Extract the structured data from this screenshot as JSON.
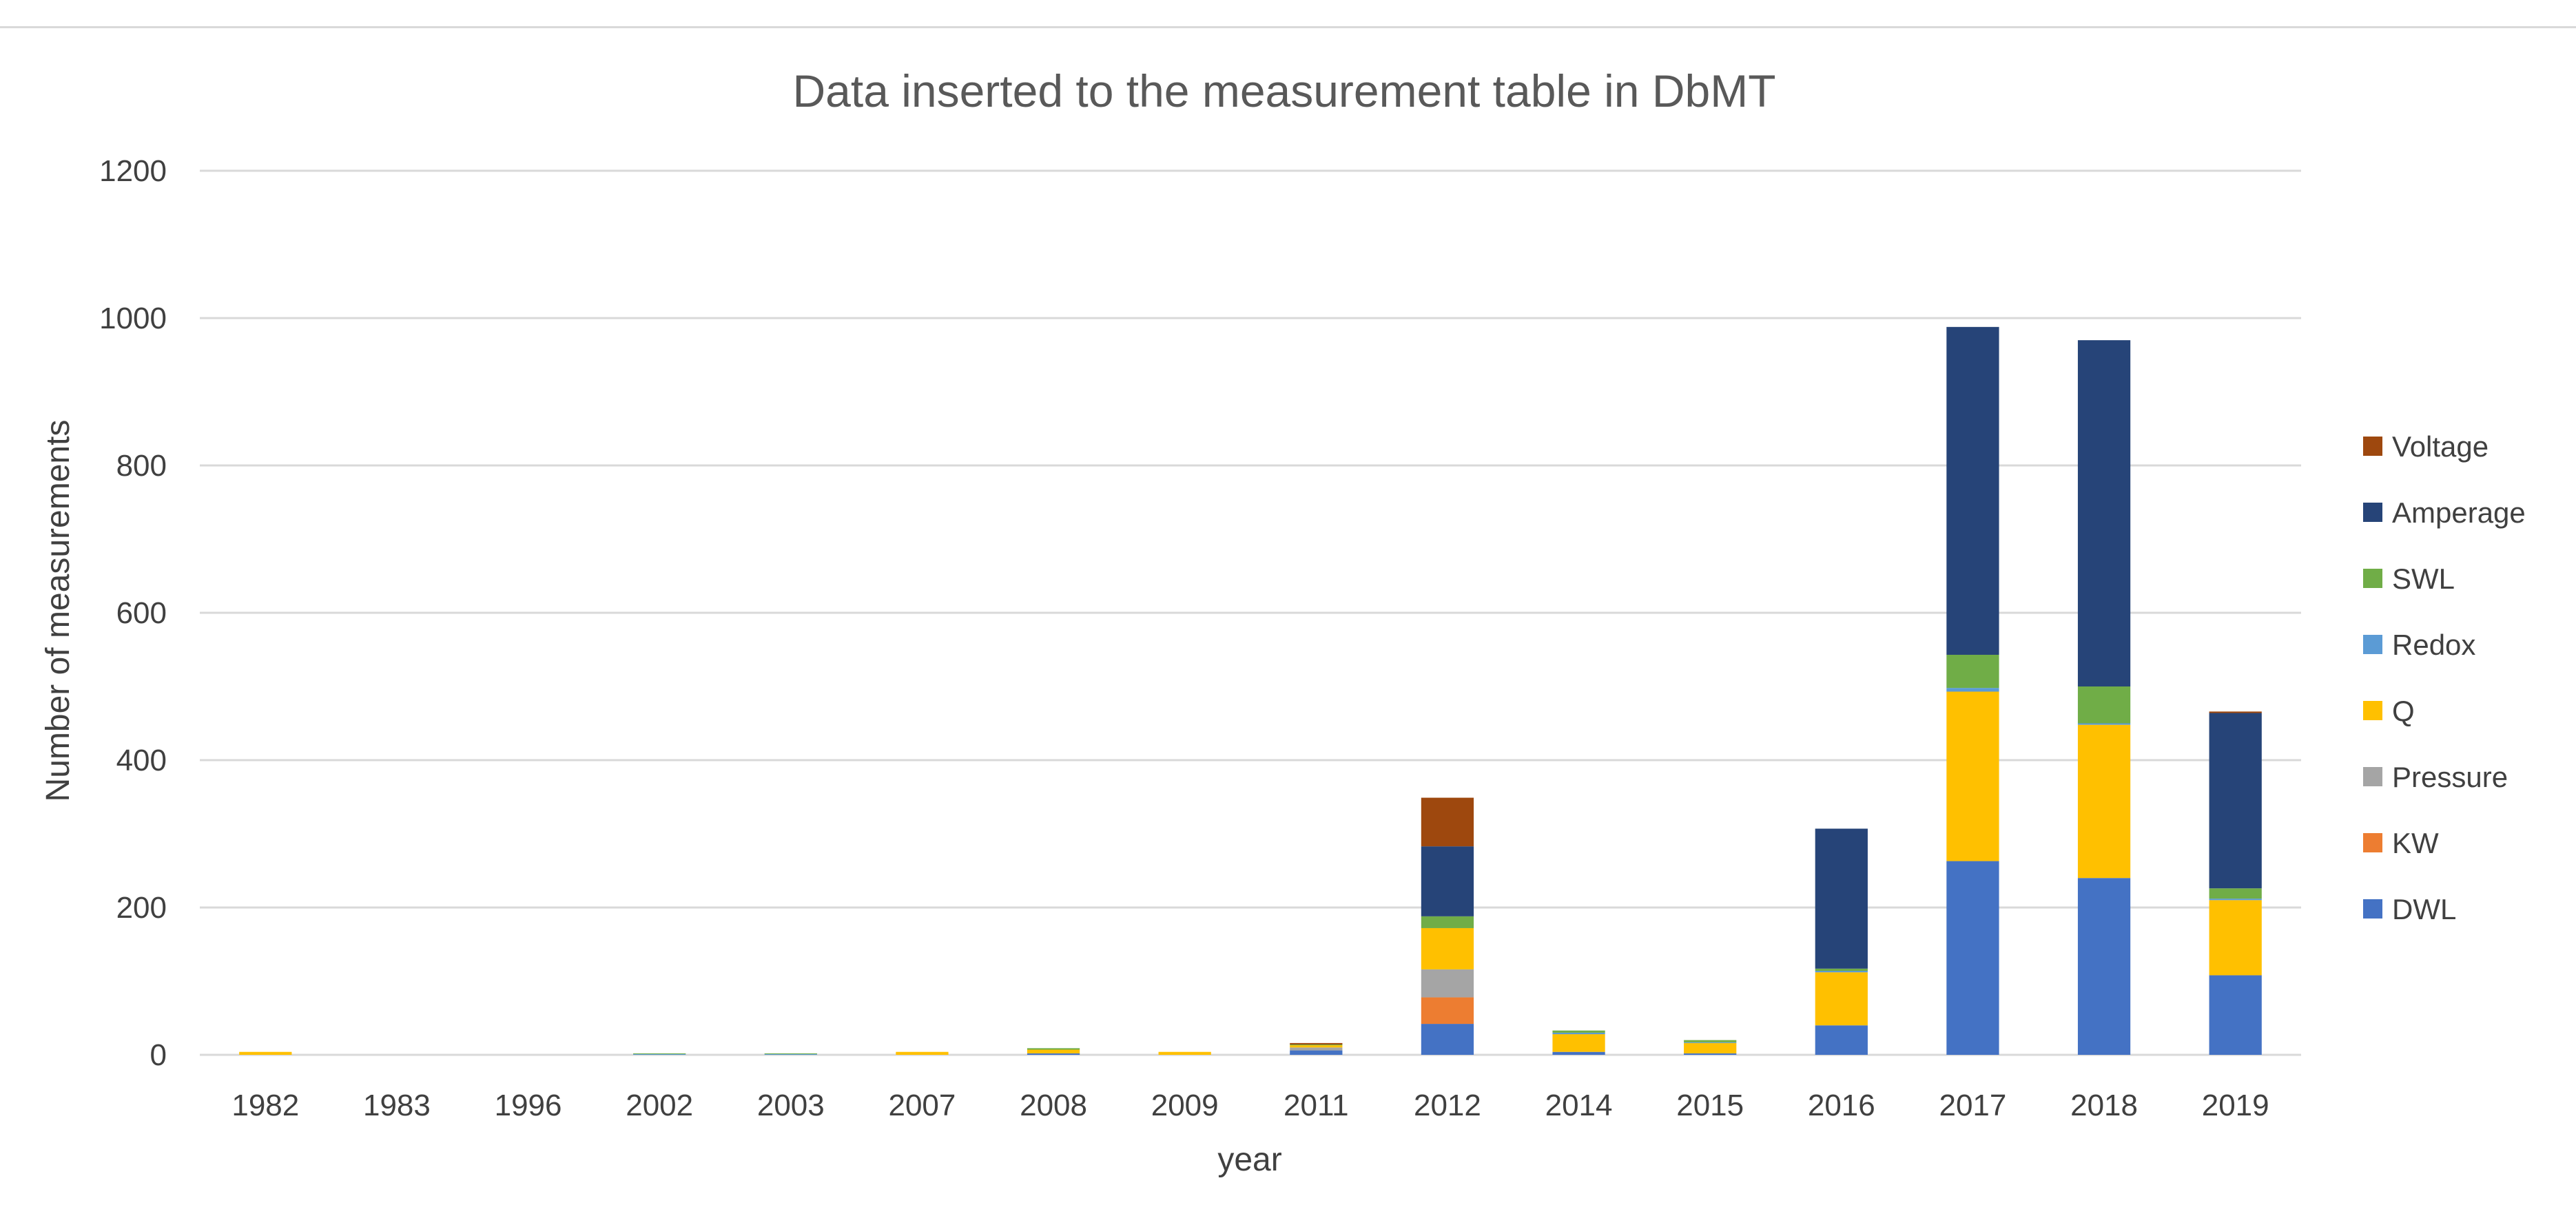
{
  "chart_data": {
    "type": "bar",
    "stacked": true,
    "title": "Data inserted to the measurement table in DbMT",
    "xlabel": "year",
    "ylabel": "Number of measurements",
    "ylim": [
      0,
      1200
    ],
    "yticks": [
      0,
      200,
      400,
      600,
      800,
      1000,
      1200
    ],
    "grid": true,
    "legend_position": "right",
    "categories": [
      "1982",
      "1983",
      "1996",
      "2002",
      "2003",
      "2007",
      "2008",
      "2009",
      "2011",
      "2012",
      "2014",
      "2015",
      "2016",
      "2017",
      "2018",
      "2019"
    ],
    "series": [
      {
        "name": "DWL",
        "color": "#4472c4",
        "values": [
          0,
          0,
          0,
          0,
          0,
          0,
          2,
          0,
          6,
          42,
          4,
          2,
          40,
          263,
          240,
          108
        ]
      },
      {
        "name": "KW",
        "color": "#ed7d31",
        "values": [
          0,
          0,
          0,
          0,
          0,
          0,
          0,
          0,
          0,
          36,
          0,
          0,
          0,
          0,
          0,
          0
        ]
      },
      {
        "name": "Pressure",
        "color": "#a5a5a5",
        "values": [
          0,
          0,
          0,
          0,
          0,
          0,
          0,
          0,
          4,
          38,
          0,
          0,
          0,
          0,
          0,
          0
        ]
      },
      {
        "name": "Q",
        "color": "#ffc000",
        "values": [
          4,
          0,
          0,
          0,
          0,
          4,
          5,
          4,
          3,
          56,
          24,
          14,
          72,
          230,
          208,
          102
        ]
      },
      {
        "name": "Redox",
        "color": "#5b9bd5",
        "values": [
          0,
          0,
          0,
          1,
          1,
          0,
          0,
          0,
          0,
          0,
          2,
          1,
          2,
          5,
          2,
          2
        ]
      },
      {
        "name": "SWL",
        "color": "#70ad47",
        "values": [
          0,
          0,
          0,
          1,
          1,
          0,
          2,
          0,
          1,
          16,
          3,
          3,
          3,
          45,
          50,
          14
        ]
      },
      {
        "name": "Amperage",
        "color": "#264478",
        "values": [
          0,
          0,
          0,
          0,
          0,
          0,
          0,
          0,
          0,
          95,
          0,
          0,
          190,
          445,
          470,
          238
        ]
      },
      {
        "name": "Voltage",
        "color": "#9e480e",
        "values": [
          0,
          0,
          0,
          0,
          0,
          0,
          0,
          0,
          2,
          66,
          0,
          0,
          0,
          0,
          0,
          2
        ]
      }
    ]
  }
}
